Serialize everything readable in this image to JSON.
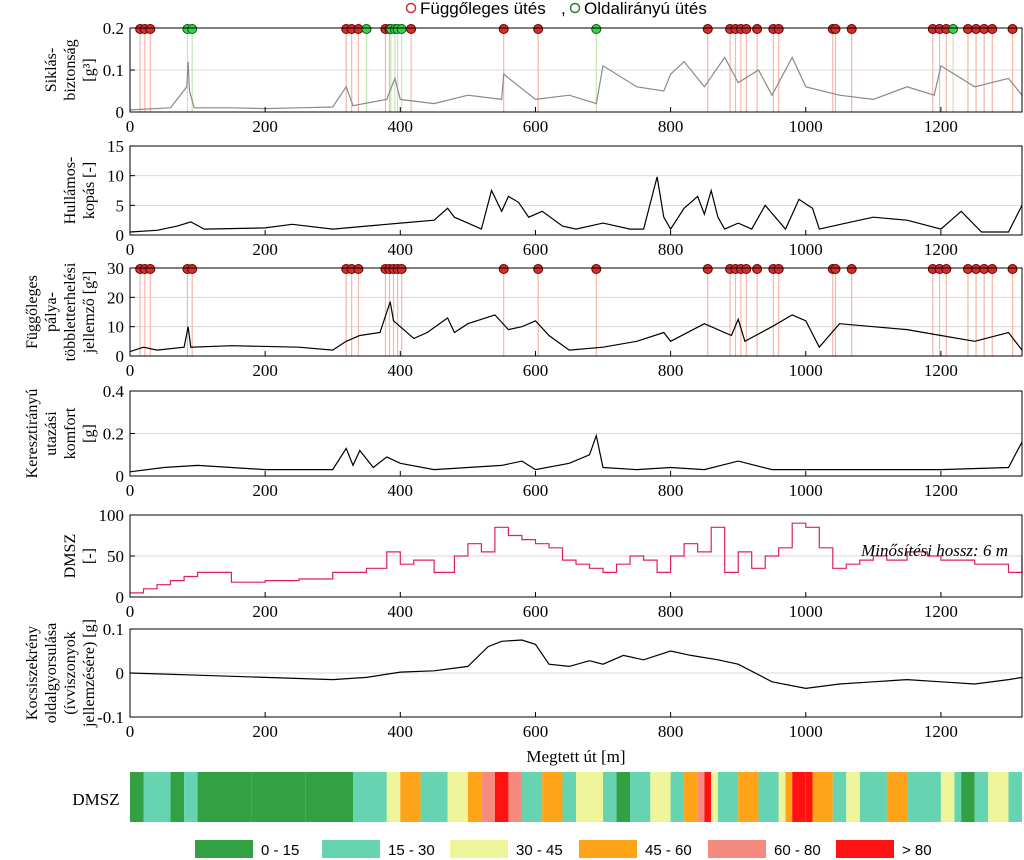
{
  "legend": {
    "vertical_label": "Függőleges ütés",
    "separator": ",",
    "lateral_label": "Oldalirányú ütés",
    "vertical_color": "#d32f2f",
    "lateral_color": "#2e7d32"
  },
  "x_axis": {
    "label": "Megtett út [m]",
    "ticks": [
      "0",
      "200",
      "400",
      "600",
      "800",
      "1000",
      "1200"
    ],
    "range": [
      0,
      1320
    ]
  },
  "annotation": "Minősítési hossz: 6 m",
  "rating_strip": {
    "label": "DMSZ"
  },
  "rating_legend": [
    {
      "label": "0 - 15",
      "color": "#33a043"
    },
    {
      "label": "15 - 30",
      "color": "#66d4b0"
    },
    {
      "label": "30 - 45",
      "color": "#eef59a"
    },
    {
      "label": "45 - 60",
      "color": "#ffa418"
    },
    {
      "label": "60 - 80",
      "color": "#f58a7e"
    },
    {
      "label": "> 80",
      "color": "#ff1212"
    }
  ],
  "chart_data": [
    {
      "id": "p1",
      "type": "line",
      "ylabel_lines": [
        "Siklás-",
        "biztonság"
      ],
      "ylabel_unit": "[g³]",
      "ylim": [
        0,
        0.2
      ],
      "yticks": [
        "0",
        "0.1",
        "0.2"
      ],
      "grid": true,
      "line_color": "#8a8a8a",
      "vertical_hits_x": [
        15,
        22,
        30,
        320,
        328,
        338,
        378,
        384,
        416,
        553,
        604,
        855,
        888,
        896,
        904,
        912,
        928,
        952,
        960,
        1040,
        1044,
        1068,
        1188,
        1198,
        1208,
        1240,
        1252,
        1264,
        1276,
        1306
      ],
      "lateral_hits_x": [
        85,
        92,
        350,
        386,
        392,
        396,
        402,
        690,
        1218
      ],
      "series": [
        {
          "x": [
            0,
            60,
            84,
            86,
            88,
            95,
            150,
            200,
            250,
            300,
            320,
            330,
            380,
            392,
            400,
            450,
            500,
            550,
            553,
            600,
            650,
            690,
            700,
            750,
            790,
            800,
            820,
            850,
            880,
            900,
            930,
            950,
            980,
            1000,
            1050,
            1100,
            1150,
            1190,
            1200,
            1250,
            1300,
            1320
          ],
          "y": [
            0.005,
            0.01,
            0.06,
            0.12,
            0.05,
            0.01,
            0.01,
            0.008,
            0.01,
            0.012,
            0.06,
            0.015,
            0.03,
            0.08,
            0.03,
            0.02,
            0.04,
            0.03,
            0.09,
            0.03,
            0.04,
            0.02,
            0.11,
            0.06,
            0.05,
            0.09,
            0.12,
            0.06,
            0.13,
            0.07,
            0.1,
            0.04,
            0.13,
            0.06,
            0.04,
            0.03,
            0.06,
            0.04,
            0.11,
            0.06,
            0.08,
            0.04
          ]
        }
      ]
    },
    {
      "id": "p2",
      "type": "line",
      "ylabel_lines": [
        "Hullámos-",
        "kopás [-]"
      ],
      "ylabel_unit": "",
      "ylim": [
        0,
        15
      ],
      "yticks": [
        "0",
        "5",
        "10",
        "15"
      ],
      "grid": true,
      "line_color": "#000000",
      "series": [
        {
          "x": [
            0,
            40,
            70,
            90,
            110,
            200,
            240,
            300,
            350,
            400,
            450,
            470,
            480,
            500,
            520,
            535,
            550,
            560,
            575,
            590,
            610,
            640,
            660,
            700,
            740,
            760,
            780,
            790,
            800,
            820,
            840,
            850,
            860,
            870,
            880,
            900,
            920,
            940,
            970,
            990,
            1010,
            1020,
            1060,
            1100,
            1150,
            1200,
            1230,
            1260,
            1300,
            1320
          ],
          "y": [
            0.5,
            0.8,
            1.5,
            2.2,
            1.0,
            1.2,
            1.8,
            1.0,
            1.5,
            2.0,
            2.5,
            4.5,
            3.0,
            2.0,
            1.0,
            7.5,
            4.0,
            6.5,
            5.5,
            3.0,
            4.0,
            1.5,
            1.0,
            2.0,
            1.0,
            1.0,
            9.8,
            3.0,
            1.0,
            4.5,
            6.5,
            3.5,
            7.5,
            3.0,
            1.0,
            2.0,
            1.0,
            5.0,
            1.0,
            6.0,
            4.5,
            1.0,
            2.0,
            3.0,
            2.5,
            1.0,
            4.0,
            0.5,
            0.5,
            5.0
          ]
        }
      ]
    },
    {
      "id": "p3",
      "type": "line",
      "ylabel_lines": [
        "Függőleges",
        "pálya-",
        "többletterhelési"
      ],
      "ylabel_unit": "jellemző [g²]",
      "ylim": [
        0,
        30
      ],
      "yticks": [
        "0",
        "10",
        "20",
        "30"
      ],
      "grid": true,
      "line_color": "#000000",
      "vertical_hits_x": [
        15,
        22,
        30,
        85,
        92,
        320,
        328,
        338,
        378,
        384,
        390,
        396,
        402,
        553,
        604,
        690,
        855,
        888,
        896,
        904,
        912,
        928,
        952,
        960,
        1040,
        1044,
        1068,
        1188,
        1198,
        1208,
        1240,
        1252,
        1264,
        1276,
        1306
      ],
      "series": [
        {
          "x": [
            0,
            20,
            40,
            80,
            86,
            90,
            150,
            250,
            300,
            320,
            340,
            370,
            385,
            390,
            400,
            420,
            440,
            470,
            480,
            500,
            540,
            560,
            580,
            600,
            620,
            650,
            700,
            750,
            790,
            800,
            850,
            890,
            900,
            910,
            950,
            980,
            1000,
            1020,
            1050,
            1100,
            1150,
            1200,
            1250,
            1300,
            1320
          ],
          "y": [
            1.5,
            3.0,
            2.0,
            3.0,
            10.0,
            3.0,
            3.5,
            3.0,
            2.0,
            5.0,
            7.0,
            8.0,
            18.5,
            12.0,
            10.0,
            6.0,
            8.0,
            13.0,
            8.0,
            11.0,
            14.0,
            9.0,
            10.0,
            12.0,
            7.0,
            2.0,
            3.0,
            5.0,
            8.0,
            5.0,
            11.0,
            7.0,
            12.5,
            5.0,
            10.0,
            14.0,
            12.0,
            3.0,
            11.0,
            10.0,
            9.0,
            7.0,
            5.0,
            8.0,
            2.0
          ]
        }
      ]
    },
    {
      "id": "p4",
      "type": "line",
      "ylabel_lines": [
        "Keresztirányú",
        "utazási",
        "komfort"
      ],
      "ylabel_unit": "[g]",
      "ylim": [
        0,
        0.4
      ],
      "yticks": [
        "0",
        "0.2",
        "0.4"
      ],
      "grid": true,
      "line_color": "#000000",
      "series": [
        {
          "x": [
            0,
            50,
            100,
            200,
            300,
            320,
            330,
            340,
            360,
            380,
            400,
            450,
            500,
            550,
            580,
            600,
            650,
            680,
            690,
            700,
            750,
            800,
            850,
            900,
            950,
            1000,
            1100,
            1200,
            1300,
            1320
          ],
          "y": [
            0.02,
            0.04,
            0.05,
            0.03,
            0.03,
            0.13,
            0.05,
            0.12,
            0.04,
            0.09,
            0.06,
            0.03,
            0.04,
            0.05,
            0.07,
            0.03,
            0.06,
            0.1,
            0.19,
            0.04,
            0.03,
            0.04,
            0.03,
            0.07,
            0.03,
            0.03,
            0.03,
            0.03,
            0.04,
            0.16
          ]
        }
      ]
    },
    {
      "id": "p5",
      "type": "line",
      "ylabel_lines": [
        "DMSZ"
      ],
      "ylabel_unit": "[-]",
      "ylim": [
        0,
        100
      ],
      "yticks": [
        "0",
        "50",
        "100"
      ],
      "grid": true,
      "step": true,
      "line_color": "#e0205a",
      "series": [
        {
          "x": [
            0,
            20,
            40,
            60,
            80,
            100,
            150,
            200,
            250,
            300,
            350,
            380,
            400,
            420,
            450,
            480,
            500,
            520,
            540,
            560,
            580,
            600,
            620,
            640,
            660,
            680,
            700,
            720,
            740,
            760,
            780,
            800,
            820,
            840,
            860,
            880,
            900,
            920,
            940,
            960,
            980,
            1000,
            1020,
            1040,
            1060,
            1080,
            1100,
            1120,
            1150,
            1180,
            1200,
            1250,
            1300,
            1320
          ],
          "y": [
            5,
            10,
            15,
            20,
            25,
            30,
            18,
            20,
            22,
            30,
            35,
            55,
            40,
            45,
            30,
            50,
            65,
            55,
            85,
            75,
            70,
            65,
            60,
            45,
            40,
            35,
            30,
            40,
            50,
            45,
            30,
            50,
            65,
            55,
            85,
            30,
            55,
            35,
            50,
            60,
            90,
            85,
            60,
            35,
            40,
            45,
            50,
            45,
            55,
            50,
            45,
            40,
            30,
            50
          ]
        }
      ]
    },
    {
      "id": "p6",
      "type": "line",
      "ylabel_lines": [
        "Kocsiszekrény",
        "oldalgyorsulása",
        "(ívviszonyok",
        "jellemzésére) [g]"
      ],
      "ylabel_unit": "",
      "ylim": [
        -0.1,
        0.1
      ],
      "yticks": [
        "-0.1",
        "0",
        "0.1"
      ],
      "grid": true,
      "line_color": "#000000",
      "series": [
        {
          "x": [
            0,
            100,
            200,
            300,
            350,
            400,
            450,
            500,
            530,
            550,
            580,
            600,
            620,
            650,
            680,
            700,
            730,
            760,
            800,
            830,
            870,
            900,
            950,
            1000,
            1050,
            1100,
            1150,
            1200,
            1250,
            1300,
            1320
          ],
          "y": [
            0,
            -0.005,
            -0.01,
            -0.015,
            -0.01,
            0.002,
            0.005,
            0.015,
            0.06,
            0.072,
            0.075,
            0.065,
            0.02,
            0.015,
            0.028,
            0.02,
            0.04,
            0.03,
            0.05,
            0.04,
            0.03,
            0.02,
            -0.02,
            -0.035,
            -0.025,
            -0.02,
            -0.015,
            -0.02,
            -0.025,
            -0.015,
            -0.01
          ]
        }
      ]
    },
    {
      "id": "rating_strip",
      "type": "heatmap",
      "x_edges": [
        0,
        20,
        60,
        80,
        100,
        180,
        260,
        330,
        380,
        400,
        430,
        470,
        500,
        520,
        540,
        560,
        580,
        610,
        640,
        660,
        700,
        720,
        740,
        770,
        800,
        820,
        840,
        850,
        860,
        870,
        900,
        930,
        960,
        970,
        980,
        1000,
        1010,
        1040,
        1060,
        1080,
        1120,
        1150,
        1200,
        1220,
        1230,
        1250,
        1270,
        1300,
        1320
      ],
      "ratings": [
        0,
        1,
        0,
        1,
        0,
        0,
        0,
        1,
        2,
        3,
        1,
        2,
        3,
        4,
        5,
        4,
        1,
        3,
        1,
        2,
        1,
        0,
        1,
        2,
        1,
        3,
        4,
        5,
        2,
        1,
        3,
        1,
        2,
        3,
        5,
        5,
        3,
        1,
        2,
        1,
        3,
        1,
        2,
        1,
        0,
        1,
        2,
        1
      ]
    }
  ]
}
